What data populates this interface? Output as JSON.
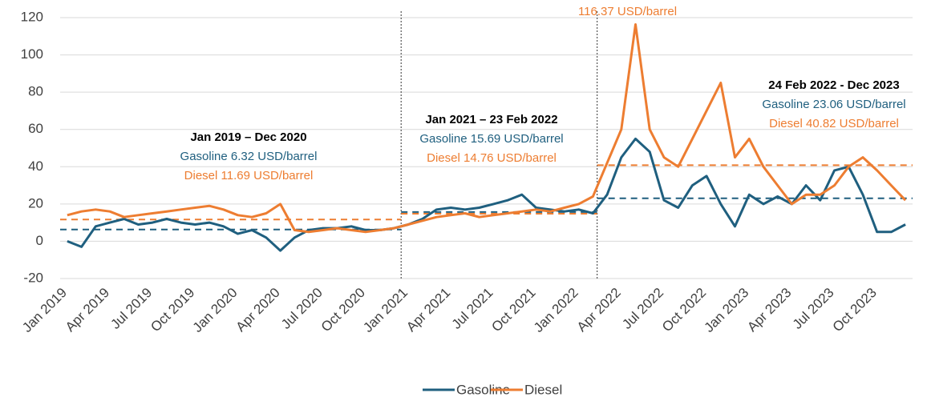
{
  "chart_data": {
    "type": "line",
    "categories": [
      "Jan 2019",
      null,
      null,
      "Apr 2019",
      null,
      null,
      "Jul 2019",
      null,
      null,
      "Oct 2019",
      null,
      null,
      "Jan 2020",
      null,
      null,
      "Apr 2020",
      null,
      null,
      "Jul 2020",
      null,
      null,
      "Oct 2020",
      null,
      null,
      "Jan 2021",
      null,
      null,
      "Apr 2021",
      null,
      null,
      "Jul 2021",
      null,
      null,
      "Oct 2021",
      null,
      null,
      "Jan 2022",
      null,
      null,
      "Apr 2022",
      null,
      null,
      "Jul 2022",
      null,
      null,
      "Oct 2022",
      null,
      null,
      "Jan 2023",
      null,
      null,
      "Apr 2023",
      null,
      null,
      "Jul 2023",
      null,
      null,
      "Oct 2023",
      null,
      null
    ],
    "series": [
      {
        "name": "Gasoline",
        "color": "#1f5f7f",
        "values": [
          0,
          -3,
          8,
          10,
          12,
          9,
          10,
          12,
          10,
          9,
          10,
          8,
          4,
          6,
          2,
          -5,
          2,
          6,
          7,
          7,
          8,
          6,
          6,
          7,
          9,
          12,
          17,
          18,
          17,
          18,
          20,
          22,
          25,
          18,
          17,
          16,
          17,
          15,
          25,
          45,
          55,
          48,
          22,
          18,
          30,
          35,
          20,
          8,
          25,
          20,
          24,
          20,
          30,
          22,
          38,
          40,
          25,
          5,
          5,
          9
        ]
      },
      {
        "name": "Diesel",
        "color": "#ed7d31",
        "values": [
          14,
          16,
          17,
          16,
          13,
          14,
          15,
          16,
          17,
          18,
          19,
          17,
          14,
          13,
          15,
          20,
          6,
          5,
          6,
          7,
          6,
          5,
          6,
          7,
          9,
          11,
          13,
          14,
          15,
          13,
          14,
          15,
          16,
          17,
          16,
          18,
          20,
          24,
          42,
          60,
          116.37,
          60,
          45,
          40,
          55,
          70,
          85,
          45,
          55,
          40,
          30,
          20,
          25,
          25,
          30,
          40,
          45,
          38,
          30,
          22
        ]
      }
    ],
    "ylim": [
      -20,
      120
    ],
    "yticks": [
      -20,
      0,
      20,
      40,
      60,
      80,
      100,
      120
    ],
    "grid": true,
    "peak_label": "116.37 USD/barrel",
    "periods": [
      {
        "title": "Jan 2019 – Dec 2020",
        "gasoline": {
          "text": "Gasoline 6.32 USD/barrel",
          "value": 6.32
        },
        "diesel": {
          "text": "Diesel 11.69 USD/barrel",
          "value": 11.69
        }
      },
      {
        "title": "Jan 2021 – 23 Feb 2022",
        "gasoline": {
          "text": "Gasoline 15.69 USD/barrel",
          "value": 15.69
        },
        "diesel": {
          "text": "Diesel 14.76 USD/barrel",
          "value": 14.76
        }
      },
      {
        "title": "24 Feb 2022 - Dec 2023",
        "gasoline": {
          "text": "Gasoline 23.06 USD/barrel",
          "value": 23.06
        },
        "diesel": {
          "text": "Diesel 40.82 USD/barrel",
          "value": 40.82
        }
      }
    ],
    "legend": "bottom"
  }
}
